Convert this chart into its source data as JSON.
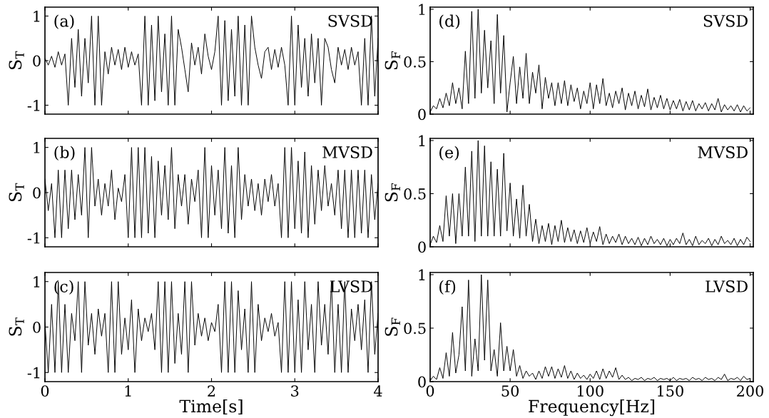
{
  "chart_data": [
    {
      "type": "line",
      "ylabel": "S$_{T}$",
      "annotations": [
        "(a)",
        "SVSD"
      ],
      "tick_labels": "y",
      "xlim": [
        0,
        4
      ],
      "xticks": [
        0,
        1,
        2,
        3,
        4
      ],
      "ylim": [
        -1.2,
        1.2
      ],
      "yticks": [
        -1,
        0,
        1
      ],
      "x": [
        0,
        0.04,
        0.08,
        0.12,
        0.16,
        0.2,
        0.24,
        0.28,
        0.32,
        0.36,
        0.4,
        0.44,
        0.48,
        0.52,
        0.56,
        0.6,
        0.64,
        0.68,
        0.72,
        0.76,
        0.8,
        0.84,
        0.88,
        0.92,
        0.96,
        1.0,
        1.04,
        1.08,
        1.12,
        1.16,
        1.2,
        1.24,
        1.28,
        1.32,
        1.36,
        1.4,
        1.44,
        1.48,
        1.52,
        1.56,
        1.6,
        1.64,
        1.68,
        1.72,
        1.76,
        1.8,
        1.84,
        1.88,
        1.92,
        1.96,
        2.0,
        2.04,
        2.08,
        2.12,
        2.16,
        2.2,
        2.24,
        2.28,
        2.32,
        2.36,
        2.4,
        2.44,
        2.48,
        2.52,
        2.56,
        2.6,
        2.64,
        2.68,
        2.72,
        2.76,
        2.8,
        2.84,
        2.88,
        2.92,
        2.96,
        3.0,
        3.04,
        3.08,
        3.12,
        3.16,
        3.2,
        3.24,
        3.28,
        3.32,
        3.36,
        3.4,
        3.44,
        3.48,
        3.52,
        3.56,
        3.6,
        3.64,
        3.68,
        3.72,
        3.76,
        3.8,
        3.84,
        3.88,
        3.92,
        3.96,
        4.0
      ],
      "series": [
        {
          "color": "#000000",
          "values": [
            0.05,
            -0.1,
            0.1,
            -0.15,
            0.2,
            -0.1,
            0.15,
            -1,
            0.5,
            -0.6,
            0.7,
            -0.8,
            0.5,
            -0.5,
            1,
            -1,
            1,
            -1,
            0.2,
            -0.3,
            0.3,
            -0.1,
            0.25,
            -0.2,
            0.3,
            -0.15,
            0.2,
            -0.1,
            0.15,
            -1,
            1,
            -1,
            0.8,
            -0.9,
            1,
            -0.7,
            0.6,
            -1,
            1,
            -1,
            0.7,
            0.3,
            -0.2,
            -0.7,
            0.4,
            -0.1,
            0.3,
            -0.3,
            0.6,
            0.1,
            -0.2,
            0.2,
            1,
            -1,
            0.9,
            -0.9,
            0.7,
            -0.8,
            1,
            -1,
            0.8,
            -1,
            1,
            0.3,
            -0.1,
            -0.4,
            0.2,
            0.3,
            -0.2,
            0.25,
            -0.15,
            0.3,
            -0.1,
            -1,
            1,
            -1,
            0.8,
            -0.6,
            0.5,
            -0.8,
            0.6,
            -0.5,
            0.5,
            -1,
            0.5,
            0.3,
            -0.2,
            -0.5,
            0.3,
            -0.1,
            0.25,
            -0.2,
            0.3,
            -0.1,
            0.2,
            -1,
            0.5,
            -1,
            1,
            -0.8,
            0.5
          ]
        }
      ]
    },
    {
      "type": "line",
      "ylabel": "S$_{T}$",
      "annotations": [
        "(b)",
        "MVSD"
      ],
      "tick_labels": "y",
      "xlim": [
        0,
        4
      ],
      "xticks": [
        0,
        1,
        2,
        3,
        4
      ],
      "ylim": [
        -1.2,
        1.2
      ],
      "yticks": [
        -1,
        0,
        1
      ],
      "x": [
        0,
        0.04,
        0.08,
        0.12,
        0.16,
        0.2,
        0.24,
        0.28,
        0.32,
        0.36,
        0.4,
        0.44,
        0.48,
        0.52,
        0.56,
        0.6,
        0.64,
        0.68,
        0.72,
        0.76,
        0.8,
        0.84,
        0.88,
        0.92,
        0.96,
        1.0,
        1.04,
        1.08,
        1.12,
        1.16,
        1.2,
        1.24,
        1.28,
        1.32,
        1.36,
        1.4,
        1.44,
        1.48,
        1.52,
        1.56,
        1.6,
        1.64,
        1.68,
        1.72,
        1.76,
        1.8,
        1.84,
        1.88,
        1.92,
        1.96,
        2.0,
        2.04,
        2.08,
        2.12,
        2.16,
        2.2,
        2.24,
        2.28,
        2.32,
        2.36,
        2.4,
        2.44,
        2.48,
        2.52,
        2.56,
        2.6,
        2.64,
        2.68,
        2.72,
        2.76,
        2.8,
        2.84,
        2.88,
        2.92,
        2.96,
        3.0,
        3.04,
        3.08,
        3.12,
        3.16,
        3.2,
        3.24,
        3.28,
        3.32,
        3.36,
        3.4,
        3.44,
        3.48,
        3.52,
        3.56,
        3.6,
        3.64,
        3.68,
        3.72,
        3.76,
        3.8,
        3.84,
        3.88,
        3.92,
        3.96,
        4.0
      ],
      "series": [
        {
          "color": "#000000",
          "values": [
            0.3,
            -0.4,
            0.2,
            -1,
            0.5,
            -1,
            0.5,
            -0.8,
            0.5,
            -0.6,
            0.4,
            -0.5,
            1,
            -1,
            1,
            -0.3,
            0.3,
            -0.5,
            0.2,
            -0.3,
            0.5,
            -0.6,
            0.1,
            -0.2,
            0.4,
            -1,
            1,
            -1,
            1,
            -1,
            1,
            -0.9,
            0.8,
            -1,
            0.7,
            -0.5,
            0.6,
            -0.6,
            1,
            -0.8,
            0.4,
            -0.3,
            0.4,
            -0.7,
            0.3,
            -0.2,
            0.5,
            -1,
            1,
            -1,
            0.6,
            -0.5,
            0.5,
            -0.8,
            1,
            -0.9,
            0.6,
            -1,
            1,
            -0.6,
            0.4,
            -0.3,
            0.3,
            -0.4,
            0.2,
            -0.5,
            0.3,
            -0.2,
            0.4,
            -0.3,
            0.2,
            -1,
            1,
            -1,
            1,
            -0.8,
            0.7,
            -0.9,
            0.9,
            -1,
            0.6,
            -0.7,
            0.5,
            -0.4,
            0.6,
            -0.3,
            0.2,
            -0.5,
            0.5,
            -0.8,
            0.5,
            -1,
            0.5,
            -1,
            0.5,
            -0.9,
            0.5,
            -1,
            0.4,
            -0.6,
            0.2
          ]
        }
      ]
    },
    {
      "type": "line",
      "xlabel": "Time[s]",
      "ylabel": "S$_{T}$",
      "annotations": [
        "(c)",
        "LVSD"
      ],
      "xlim": [
        0,
        4
      ],
      "xticks": [
        0,
        1,
        2,
        3,
        4
      ],
      "ylim": [
        -1.2,
        1.2
      ],
      "yticks": [
        -1,
        0,
        1
      ],
      "x": [
        0,
        0.04,
        0.08,
        0.12,
        0.16,
        0.2,
        0.24,
        0.28,
        0.32,
        0.36,
        0.4,
        0.44,
        0.48,
        0.52,
        0.56,
        0.6,
        0.64,
        0.68,
        0.72,
        0.76,
        0.8,
        0.84,
        0.88,
        0.92,
        0.96,
        1.0,
        1.04,
        1.08,
        1.12,
        1.16,
        1.2,
        1.24,
        1.28,
        1.32,
        1.36,
        1.4,
        1.44,
        1.48,
        1.52,
        1.56,
        1.6,
        1.64,
        1.68,
        1.72,
        1.76,
        1.8,
        1.84,
        1.88,
        1.92,
        1.96,
        2.0,
        2.04,
        2.08,
        2.12,
        2.16,
        2.2,
        2.24,
        2.28,
        2.32,
        2.36,
        2.4,
        2.44,
        2.48,
        2.52,
        2.56,
        2.6,
        2.64,
        2.68,
        2.72,
        2.76,
        2.8,
        2.84,
        2.88,
        2.92,
        2.96,
        3.0,
        3.04,
        3.08,
        3.12,
        3.16,
        3.2,
        3.24,
        3.28,
        3.32,
        3.36,
        3.4,
        3.44,
        3.48,
        3.52,
        3.56,
        3.6,
        3.64,
        3.68,
        3.72,
        3.76,
        3.8,
        3.84,
        3.88,
        3.92,
        3.96,
        4.0
      ],
      "series": [
        {
          "color": "#000000",
          "values": [
            0.1,
            -1,
            0.5,
            -1,
            1,
            -1,
            0.5,
            -1,
            0.3,
            -0.3,
            1,
            -1,
            1,
            -0.4,
            0.3,
            -0.6,
            0.4,
            -0.2,
            0.3,
            -1,
            1,
            -1,
            1,
            -0.6,
            0.2,
            -0.5,
            0.6,
            -1,
            0.4,
            -0.3,
            0.2,
            -0.1,
            0.3,
            -0.5,
            1,
            -1,
            1,
            -1,
            1,
            -0.8,
            0.3,
            -0.6,
            1,
            -1,
            1,
            -0.4,
            0.3,
            -0.2,
            0.2,
            -0.3,
            0.1,
            -0.1,
            0.5,
            -1,
            1,
            -1,
            1,
            -1,
            0.8,
            -0.5,
            0.4,
            -1,
            1,
            -1,
            0.5,
            -0.3,
            0.2,
            -0.1,
            0.3,
            -0.2,
            0.1,
            -1,
            1,
            -1,
            1,
            -1,
            0.6,
            -1,
            1,
            -0.5,
            0.5,
            -1,
            1,
            -0.4,
            0.5,
            -0.6,
            1,
            -1,
            0.5,
            -1,
            1,
            -1,
            0.4,
            -0.3,
            0.5,
            -0.5,
            0.6,
            -1,
            1,
            -0.6,
            0.3
          ]
        }
      ]
    },
    {
      "type": "line",
      "ylabel": "S$_{F}$",
      "annotations": [
        "(d)",
        "SVSD"
      ],
      "tick_labels": "y",
      "xlim": [
        0,
        202
      ],
      "xticks": [
        0,
        50,
        100,
        150,
        200
      ],
      "ylim": [
        0,
        1.02
      ],
      "yticks": [
        0,
        0.5,
        1
      ],
      "x": [
        0,
        2,
        4,
        6,
        8,
        10,
        12,
        14,
        16,
        18,
        20,
        22,
        24,
        26,
        28,
        30,
        32,
        34,
        36,
        38,
        40,
        42,
        44,
        46,
        48,
        50,
        52,
        54,
        56,
        58,
        60,
        62,
        64,
        66,
        68,
        70,
        72,
        74,
        76,
        78,
        80,
        82,
        84,
        86,
        88,
        90,
        92,
        94,
        96,
        98,
        100,
        102,
        104,
        106,
        108,
        110,
        112,
        114,
        116,
        118,
        120,
        122,
        124,
        126,
        128,
        130,
        132,
        134,
        136,
        138,
        140,
        142,
        144,
        146,
        148,
        150,
        152,
        154,
        156,
        158,
        160,
        162,
        164,
        166,
        168,
        170,
        172,
        174,
        176,
        178,
        180,
        182,
        184,
        186,
        188,
        190,
        192,
        194,
        196,
        198,
        200
      ],
      "series": [
        {
          "color": "#000000",
          "values": [
            0.02,
            0.08,
            0.05,
            0.15,
            0.06,
            0.2,
            0.08,
            0.3,
            0.1,
            0.25,
            0.05,
            0.6,
            0.1,
            0.98,
            0.15,
            1.0,
            0.2,
            0.8,
            0.25,
            0.7,
            0.1,
            0.95,
            0.2,
            0.75,
            0.02,
            0.3,
            0.55,
            0.1,
            0.45,
            0.15,
            0.58,
            0.1,
            0.4,
            0.2,
            0.47,
            0.05,
            0.35,
            0.15,
            0.3,
            0.08,
            0.3,
            0.1,
            0.32,
            0.08,
            0.28,
            0.12,
            0.25,
            0.05,
            0.22,
            0.1,
            0.3,
            0.05,
            0.28,
            0.1,
            0.34,
            0.08,
            0.2,
            0.06,
            0.22,
            0.1,
            0.25,
            0.04,
            0.2,
            0.08,
            0.22,
            0.05,
            0.18,
            0.07,
            0.24,
            0.04,
            0.16,
            0.06,
            0.18,
            0.05,
            0.15,
            0.04,
            0.13,
            0.05,
            0.14,
            0.03,
            0.12,
            0.04,
            0.13,
            0.03,
            0.1,
            0.05,
            0.11,
            0.03,
            0.1,
            0.04,
            0.15,
            0.02,
            0.09,
            0.04,
            0.08,
            0.03,
            0.09,
            0.02,
            0.08,
            0.03,
            0.06
          ]
        }
      ]
    },
    {
      "type": "line",
      "ylabel": "S$_{F}$",
      "annotations": [
        "(e)",
        "MVSD"
      ],
      "tick_labels": "y",
      "xlim": [
        0,
        202
      ],
      "xticks": [
        0,
        50,
        100,
        150,
        200
      ],
      "ylim": [
        0,
        1.02
      ],
      "yticks": [
        0,
        0.5,
        1
      ],
      "x": [
        0,
        2,
        4,
        6,
        8,
        10,
        12,
        14,
        16,
        18,
        20,
        22,
        24,
        26,
        28,
        30,
        32,
        34,
        36,
        38,
        40,
        42,
        44,
        46,
        48,
        50,
        52,
        54,
        56,
        58,
        60,
        62,
        64,
        66,
        68,
        70,
        72,
        74,
        76,
        78,
        80,
        82,
        84,
        86,
        88,
        90,
        92,
        94,
        96,
        98,
        100,
        102,
        104,
        106,
        108,
        110,
        112,
        114,
        116,
        118,
        120,
        122,
        124,
        126,
        128,
        130,
        132,
        134,
        136,
        138,
        140,
        142,
        144,
        146,
        148,
        150,
        152,
        154,
        156,
        158,
        160,
        162,
        164,
        166,
        168,
        170,
        172,
        174,
        176,
        178,
        180,
        182,
        184,
        186,
        188,
        190,
        192,
        194,
        196,
        198,
        200
      ],
      "series": [
        {
          "color": "#000000",
          "values": [
            0.02,
            0.1,
            0.04,
            0.2,
            0.05,
            0.48,
            0.1,
            0.5,
            0.03,
            0.5,
            0.1,
            0.75,
            0.1,
            0.9,
            0.05,
            1.0,
            0.1,
            0.95,
            0.1,
            0.8,
            0.1,
            0.73,
            0.1,
            0.88,
            0.15,
            0.6,
            0.1,
            0.45,
            0.08,
            0.58,
            0.1,
            0.4,
            0.05,
            0.26,
            0.03,
            0.2,
            0.05,
            0.22,
            0.02,
            0.2,
            0.05,
            0.25,
            0.04,
            0.18,
            0.05,
            0.16,
            0.03,
            0.15,
            0.04,
            0.18,
            0.03,
            0.14,
            0.05,
            0.19,
            0.02,
            0.12,
            0.03,
            0.1,
            0.04,
            0.12,
            0.02,
            0.1,
            0.03,
            0.08,
            0.02,
            0.09,
            0.01,
            0.08,
            0.02,
            0.1,
            0.03,
            0.07,
            0.02,
            0.08,
            0.01,
            0.07,
            0.02,
            0.08,
            0.03,
            0.13,
            0.02,
            0.07,
            0.01,
            0.1,
            0.02,
            0.06,
            0.03,
            0.08,
            0.01,
            0.07,
            0.02,
            0.1,
            0.03,
            0.06,
            0.02,
            0.08,
            0.01,
            0.07,
            0.02,
            0.09,
            0.05
          ]
        }
      ]
    },
    {
      "type": "line",
      "xlabel": "Frequency[Hz]",
      "ylabel": "S$_{F}$",
      "annotations": [
        "(f)",
        "LVSD"
      ],
      "xlim": [
        0,
        202
      ],
      "xticks": [
        0,
        50,
        100,
        150,
        200
      ],
      "ylim": [
        0,
        1.02
      ],
      "yticks": [
        0,
        0.5,
        1
      ],
      "x": [
        0,
        2,
        4,
        6,
        8,
        10,
        12,
        14,
        16,
        18,
        20,
        22,
        24,
        26,
        28,
        30,
        32,
        34,
        36,
        38,
        40,
        42,
        44,
        46,
        48,
        50,
        52,
        54,
        56,
        58,
        60,
        62,
        64,
        66,
        68,
        70,
        72,
        74,
        76,
        78,
        80,
        82,
        84,
        86,
        88,
        90,
        92,
        94,
        96,
        98,
        100,
        102,
        104,
        106,
        108,
        110,
        112,
        114,
        116,
        118,
        120,
        122,
        124,
        126,
        128,
        130,
        132,
        134,
        136,
        138,
        140,
        142,
        144,
        146,
        148,
        150,
        152,
        154,
        156,
        158,
        160,
        162,
        164,
        166,
        168,
        170,
        172,
        174,
        176,
        178,
        180,
        182,
        184,
        186,
        188,
        190,
        192,
        194,
        196,
        198,
        200
      ],
      "series": [
        {
          "color": "#000000",
          "values": [
            0.01,
            0.05,
            0.02,
            0.13,
            0.03,
            0.27,
            0.05,
            0.46,
            0.08,
            0.25,
            0.7,
            0.1,
            0.95,
            0.05,
            0.4,
            0.1,
            1.0,
            0.2,
            0.95,
            0.1,
            0.3,
            0.05,
            0.55,
            0.1,
            0.33,
            0.1,
            0.3,
            0.05,
            0.15,
            0.03,
            0.1,
            0.05,
            0.08,
            0.02,
            0.1,
            0.03,
            0.14,
            0.05,
            0.14,
            0.03,
            0.12,
            0.04,
            0.15,
            0.03,
            0.1,
            0.02,
            0.08,
            0.03,
            0.06,
            0.02,
            0.07,
            0.03,
            0.1,
            0.02,
            0.12,
            0.03,
            0.1,
            0.04,
            0.13,
            0.02,
            0.06,
            0.02,
            0.04,
            0.01,
            0.03,
            0.02,
            0.04,
            0.01,
            0.03,
            0.02,
            0.04,
            0.01,
            0.03,
            0.02,
            0.03,
            0.01,
            0.04,
            0.01,
            0.03,
            0.02,
            0.03,
            0.01,
            0.04,
            0.02,
            0.03,
            0.01,
            0.04,
            0.02,
            0.03,
            0.01,
            0.04,
            0.02,
            0.07,
            0.01,
            0.03,
            0.02,
            0.04,
            0.01,
            0.05,
            0.02,
            0.03
          ]
        }
      ]
    }
  ]
}
